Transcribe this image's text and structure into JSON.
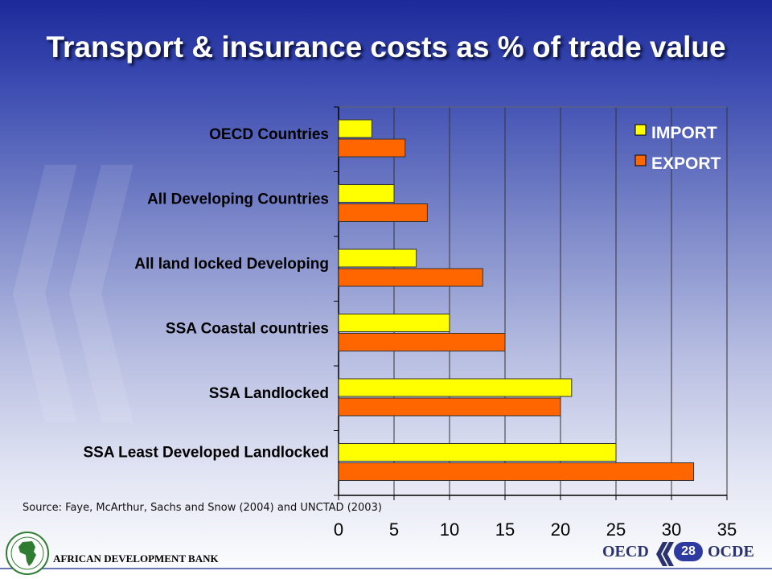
{
  "slide": {
    "title": "Transport & insurance costs as % of trade value",
    "source": "Source: Faye, McArthur, Sachs and Snow (2004) and UNCTAD (2003)",
    "page_number": "28"
  },
  "footer": {
    "organization": "AFRICAN DEVELOPMENT BANK",
    "oecd_en": "OECD",
    "oecd_fr": "OCDE"
  },
  "colors": {
    "import": "#ffff00",
    "export": "#ff6600",
    "bar_stroke": "#333333",
    "grid": "#333333"
  },
  "chart_data": {
    "type": "bar",
    "orientation": "horizontal",
    "title": "",
    "xlabel": "",
    "ylabel": "",
    "xlim": [
      0,
      35
    ],
    "ticks": [
      0,
      5,
      10,
      15,
      20,
      25,
      30,
      35
    ],
    "grid": "vertical",
    "legend_position": "top-right",
    "categories": [
      "OECD Countries",
      "All Developing Countries",
      "All land locked Developing",
      "SSA Coastal countries",
      "SSA Landlocked",
      "SSA Least Developed Landlocked"
    ],
    "series": [
      {
        "name": "IMPORT",
        "values": [
          3,
          5,
          7,
          10,
          21,
          25
        ]
      },
      {
        "name": "EXPORT",
        "values": [
          6,
          8,
          13,
          15,
          20,
          32
        ]
      }
    ]
  }
}
